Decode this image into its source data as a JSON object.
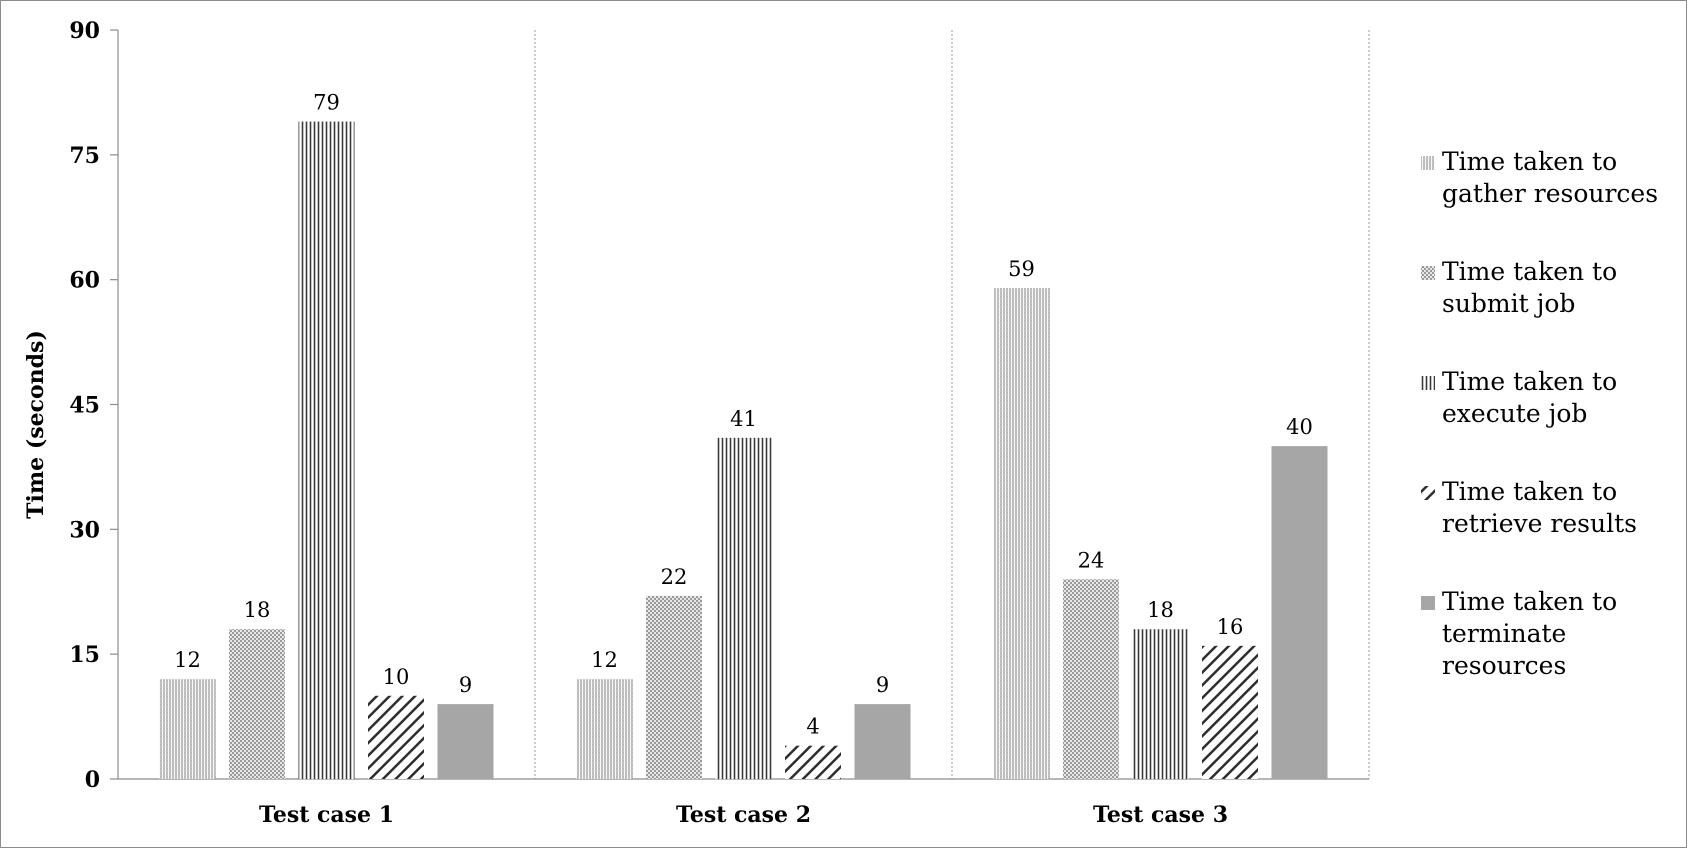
{
  "chart_data": {
    "type": "bar",
    "title": "",
    "xlabel": "",
    "ylabel": "Time (seconds)",
    "ylim": [
      0,
      90
    ],
    "yticks": [
      0,
      15,
      30,
      45,
      60,
      75,
      90
    ],
    "categories": [
      "Test case 1",
      "Test case 2",
      "Test case 3"
    ],
    "grid": "vertical dotted separators between categories",
    "legend_position": "right",
    "series": [
      {
        "name": "Time taken to gather resources",
        "legend_lines": [
          "Time taken to",
          "gather resources"
        ],
        "values": [
          12,
          12,
          59
        ],
        "pattern": "fine-vertical",
        "color": "#8a8a8a"
      },
      {
        "name": "Time taken to submit job",
        "legend_lines": [
          "Time taken to",
          "submit job"
        ],
        "values": [
          18,
          22,
          24
        ],
        "pattern": "crosshatch",
        "color": "#9a9a9a"
      },
      {
        "name": "Time taken to execute job",
        "legend_lines": [
          "Time taken to",
          "execute job"
        ],
        "values": [
          79,
          41,
          18
        ],
        "pattern": "vertical",
        "color": "#4a4a4a"
      },
      {
        "name": "Time taken to retrieve results",
        "legend_lines": [
          "Time taken to",
          "retrieve results"
        ],
        "values": [
          10,
          4,
          16
        ],
        "pattern": "diagonal",
        "color": "#3a3a3a"
      },
      {
        "name": "Time taken to terminate resources",
        "legend_lines": [
          "Time taken to",
          "terminate",
          "resources"
        ],
        "values": [
          9,
          9,
          40
        ],
        "pattern": "solid",
        "color": "#a6a6a6"
      }
    ]
  }
}
